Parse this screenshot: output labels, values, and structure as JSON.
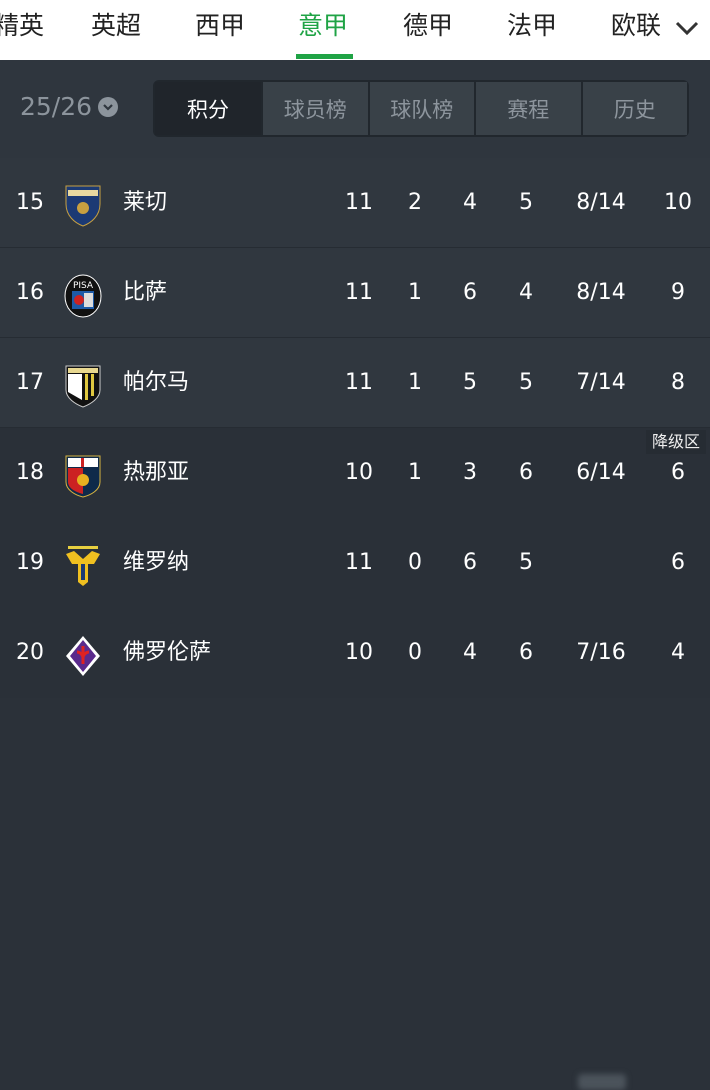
{
  "nav": {
    "tabs": [
      "精英",
      "英超",
      "西甲",
      "意甲",
      "德甲",
      "法甲",
      "欧联"
    ],
    "active": "意甲",
    "more_icon": "chevron-down-icon"
  },
  "toolbar": {
    "season": "25/26",
    "segments": [
      "积分",
      "球员榜",
      "球队榜",
      "赛程",
      "历史"
    ],
    "active_segment": "积分"
  },
  "colors": {
    "accent": "#1fa345"
  },
  "relegation_label": "降级区",
  "rows": [
    {
      "rank": "15",
      "team": "莱切",
      "p": "11",
      "w": "2",
      "d": "4",
      "l": "5",
      "goals": "8/14",
      "pts": "10"
    },
    {
      "rank": "16",
      "team": "比萨",
      "p": "11",
      "w": "1",
      "d": "6",
      "l": "4",
      "goals": "8/14",
      "pts": "9"
    },
    {
      "rank": "17",
      "team": "帕尔马",
      "p": "11",
      "w": "1",
      "d": "5",
      "l": "5",
      "goals": "7/14",
      "pts": "8"
    },
    {
      "rank": "18",
      "team": "热那亚",
      "p": "10",
      "w": "1",
      "d": "3",
      "l": "6",
      "goals": "6/14",
      "pts": "6"
    },
    {
      "rank": "19",
      "team": "维罗纳",
      "p": "11",
      "w": "0",
      "d": "6",
      "l": "5",
      "goals": "",
      "pts": "6"
    },
    {
      "rank": "20",
      "team": "佛罗伦萨",
      "p": "10",
      "w": "0",
      "d": "4",
      "l": "6",
      "goals": "7/16",
      "pts": "4"
    }
  ]
}
